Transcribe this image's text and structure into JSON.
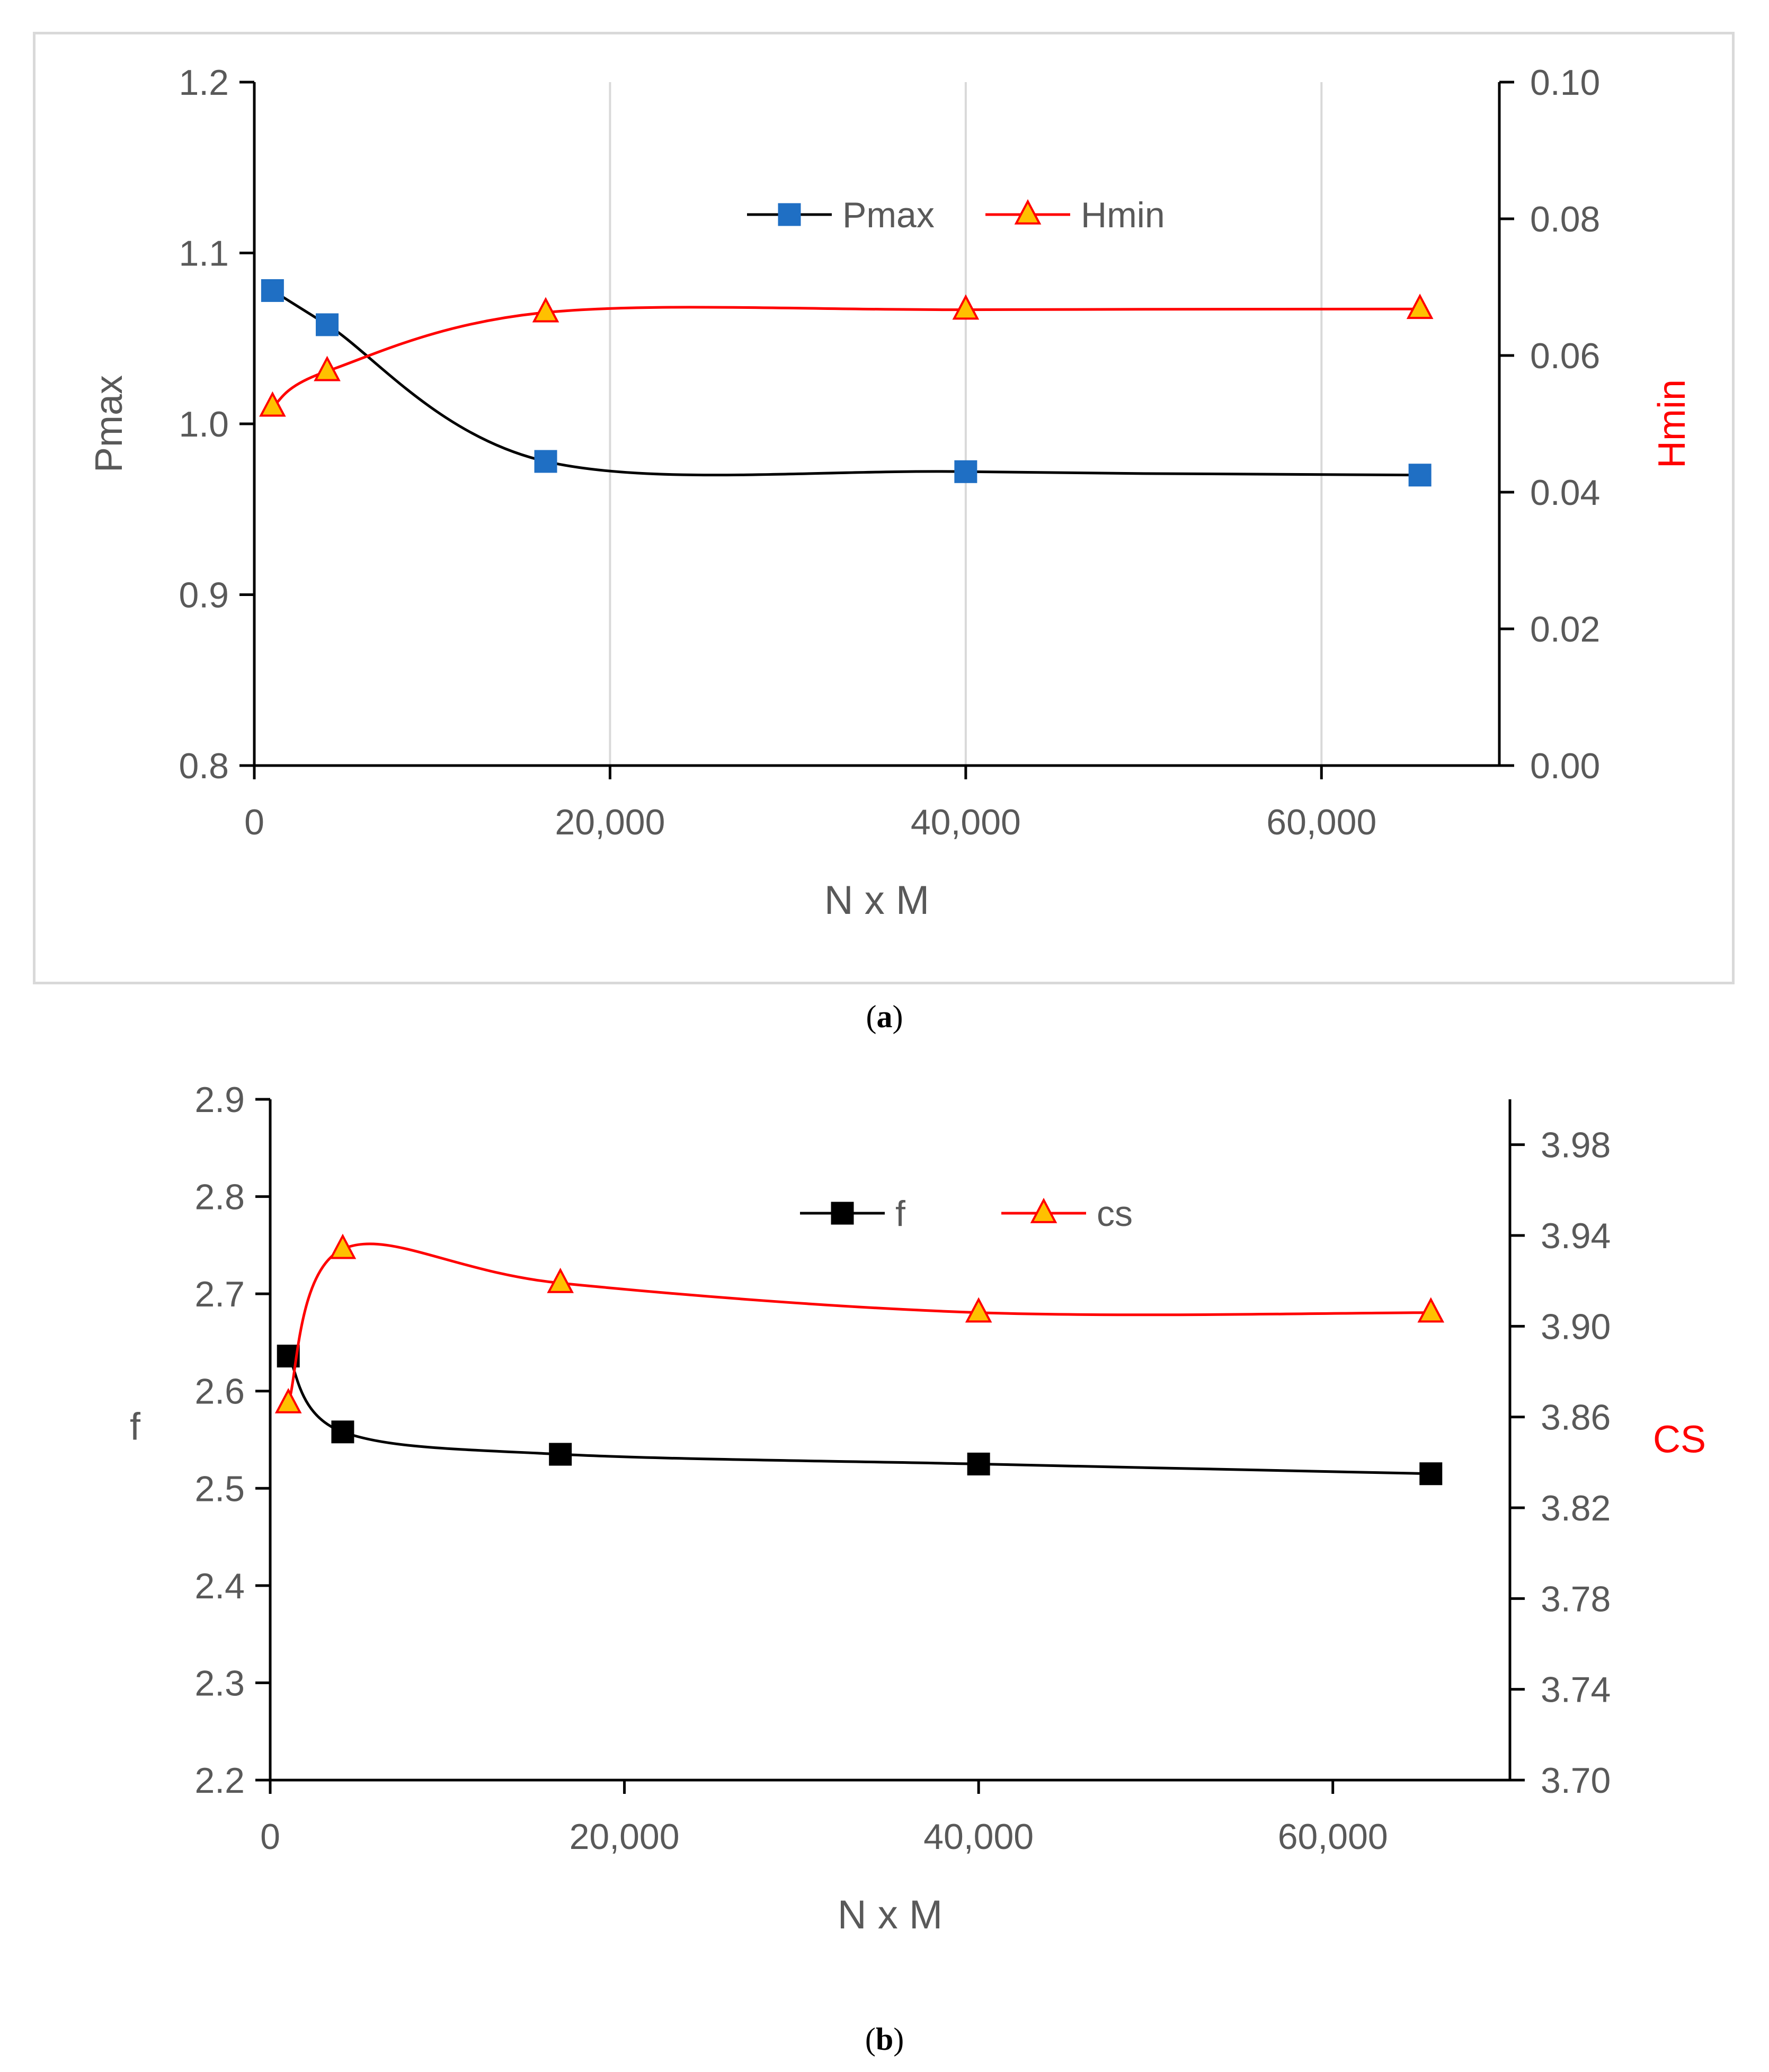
{
  "chart_data": [
    {
      "id": "a",
      "type": "line",
      "caption": "a",
      "xlabel": "N x M",
      "ylabel_left": "Pmax",
      "ylabel_right": "Hmin",
      "xlim": [
        0,
        70000
      ],
      "xticks": [
        0,
        20000,
        40000,
        60000
      ],
      "xtick_labels": [
        "0",
        "20,000",
        "40,000",
        "60,000"
      ],
      "ylim_left": [
        0.8,
        1.2
      ],
      "yticks_left": [
        0.8,
        0.9,
        1.0,
        1.1,
        1.2
      ],
      "ytick_labels_left": [
        "0.8",
        "0.9",
        "1.0",
        "1.1",
        "1.2"
      ],
      "ylim_right": [
        0.0,
        0.1
      ],
      "yticks_right": [
        0.0,
        0.02,
        0.04,
        0.06,
        0.08,
        0.1
      ],
      "ytick_labels_right": [
        "0.00",
        "0.02",
        "0.04",
        "0.06",
        "0.08",
        "0.10"
      ],
      "grid": "vertical",
      "legend": "top-center",
      "series": [
        {
          "name": "Pmax",
          "axis": "left",
          "marker": "square",
          "line_color": "#000000",
          "marker_fill": "#1f6fc4",
          "marker_stroke": "#1f6fc4",
          "x": [
            1024,
            4096,
            16384,
            40000,
            65536
          ],
          "values": [
            1.078,
            1.058,
            0.978,
            0.972,
            0.97
          ]
        },
        {
          "name": "Hmin",
          "axis": "right",
          "marker": "triangle",
          "line_color": "#ff0000",
          "marker_fill": "#ffc000",
          "marker_stroke": "#ff0000",
          "x": [
            1024,
            4096,
            16384,
            40000,
            65536
          ],
          "values": [
            0.0525,
            0.0577,
            0.0663,
            0.0667,
            0.0668
          ]
        }
      ]
    },
    {
      "id": "b",
      "type": "line",
      "caption": "b",
      "xlabel": "N x M",
      "ylabel_left": "f",
      "ylabel_right": "CS",
      "xlim": [
        0,
        70000
      ],
      "xticks": [
        0,
        20000,
        40000,
        60000
      ],
      "xtick_labels": [
        "0",
        "20,000",
        "40,000",
        "60,000"
      ],
      "ylim_left": [
        2.2,
        2.9
      ],
      "yticks_left": [
        2.2,
        2.3,
        2.4,
        2.5,
        2.6,
        2.7,
        2.8,
        2.9
      ],
      "ytick_labels_left": [
        "2.2",
        "2.3",
        "2.4",
        "2.5",
        "2.6",
        "2.7",
        "2.8",
        "2.9"
      ],
      "ylim_right": [
        3.7,
        4.0
      ],
      "yticks_right": [
        3.7,
        3.74,
        3.78,
        3.82,
        3.86,
        3.9,
        3.94,
        3.98
      ],
      "ytick_labels_right": [
        "3.70",
        "3.74",
        "3.78",
        "3.82",
        "3.86",
        "3.90",
        "3.94",
        "3.98"
      ],
      "grid": "none",
      "legend": "top-center",
      "series": [
        {
          "name": "f",
          "axis": "left",
          "marker": "square",
          "line_color": "#000000",
          "marker_fill": "#000000",
          "marker_stroke": "#000000",
          "x": [
            1024,
            4096,
            16384,
            40000,
            65536
          ],
          "values": [
            2.636,
            2.558,
            2.535,
            2.525,
            2.515
          ]
        },
        {
          "name": "cs",
          "axis": "right",
          "marker": "triangle",
          "line_color": "#ff0000",
          "marker_fill": "#ffc000",
          "marker_stroke": "#ff0000",
          "x": [
            1024,
            4096,
            16384,
            40000,
            65536
          ],
          "values": [
            3.866,
            3.934,
            3.919,
            3.906,
            3.906
          ]
        }
      ]
    }
  ],
  "colors": {
    "axis_text": "#595959",
    "right_axis_label": "#ff0000",
    "grid": "#d9d9d9",
    "axis_line": "#000000"
  }
}
